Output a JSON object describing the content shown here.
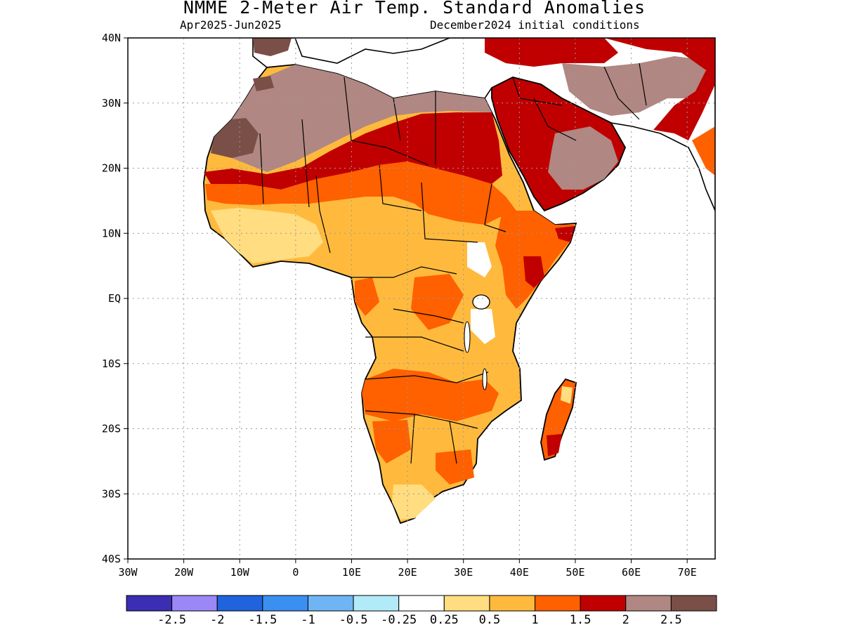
{
  "header": {
    "title": "NMME 2-Meter Air Temp. Standard Anomalies",
    "period": "Apr2025-Jun2025",
    "init": "December2024 initial conditions"
  },
  "map": {
    "lat_ticks": [
      {
        "value": 40,
        "label": "40N"
      },
      {
        "value": 30,
        "label": "30N"
      },
      {
        "value": 20,
        "label": "20N"
      },
      {
        "value": 10,
        "label": "10N"
      },
      {
        "value": 0,
        "label": "EQ"
      },
      {
        "value": -10,
        "label": "10S"
      },
      {
        "value": -20,
        "label": "20S"
      },
      {
        "value": -30,
        "label": "30S"
      },
      {
        "value": -40,
        "label": "40S"
      }
    ],
    "lon_ticks": [
      {
        "value": -30,
        "label": "30W"
      },
      {
        "value": -20,
        "label": "20W"
      },
      {
        "value": -10,
        "label": "10W"
      },
      {
        "value": 0,
        "label": "0"
      },
      {
        "value": 10,
        "label": "10E"
      },
      {
        "value": 20,
        "label": "20E"
      },
      {
        "value": 30,
        "label": "30E"
      },
      {
        "value": 40,
        "label": "40E"
      },
      {
        "value": 50,
        "label": "50E"
      },
      {
        "value": 60,
        "label": "60E"
      },
      {
        "value": 70,
        "label": "70E"
      }
    ],
    "extent": {
      "lon_min": -30,
      "lon_max": 75,
      "lat_min": -40,
      "lat_max": 40
    },
    "grid": true,
    "regions": [
      {
        "name": "Sahara / Mauritania",
        "level": "2-2.5"
      },
      {
        "name": "Sahel band",
        "level": "1.5-2"
      },
      {
        "name": "West Africa",
        "level": "0.5-1"
      },
      {
        "name": "Egypt-Sudan",
        "level": "1.5-2"
      },
      {
        "name": "Arabian Peninsula",
        "level": "1.5-2"
      },
      {
        "name": "Horn of Africa",
        "level": "1-1.5"
      },
      {
        "name": "Central Africa",
        "level": "0.5-1"
      },
      {
        "name": "Southern Africa",
        "level": "0.5-1"
      },
      {
        "name": "Madagascar",
        "level": "1-1.5"
      }
    ]
  },
  "colorbar": {
    "colors": [
      "#3b2eb3",
      "#9b87f5",
      "#1f63dd",
      "#3a8ff0",
      "#6fb4f5",
      "#b1ebf7",
      "#ffffff",
      "#ffdd80",
      "#ffba3d",
      "#ff6000",
      "#c00000",
      "#b08782",
      "#7a4f47"
    ],
    "labels": [
      "-2.5",
      "-2",
      "-1.5",
      "-1",
      "-0.5",
      "-0.25",
      "0.25",
      "0.5",
      "1",
      "1.5",
      "2",
      "2.5"
    ]
  }
}
